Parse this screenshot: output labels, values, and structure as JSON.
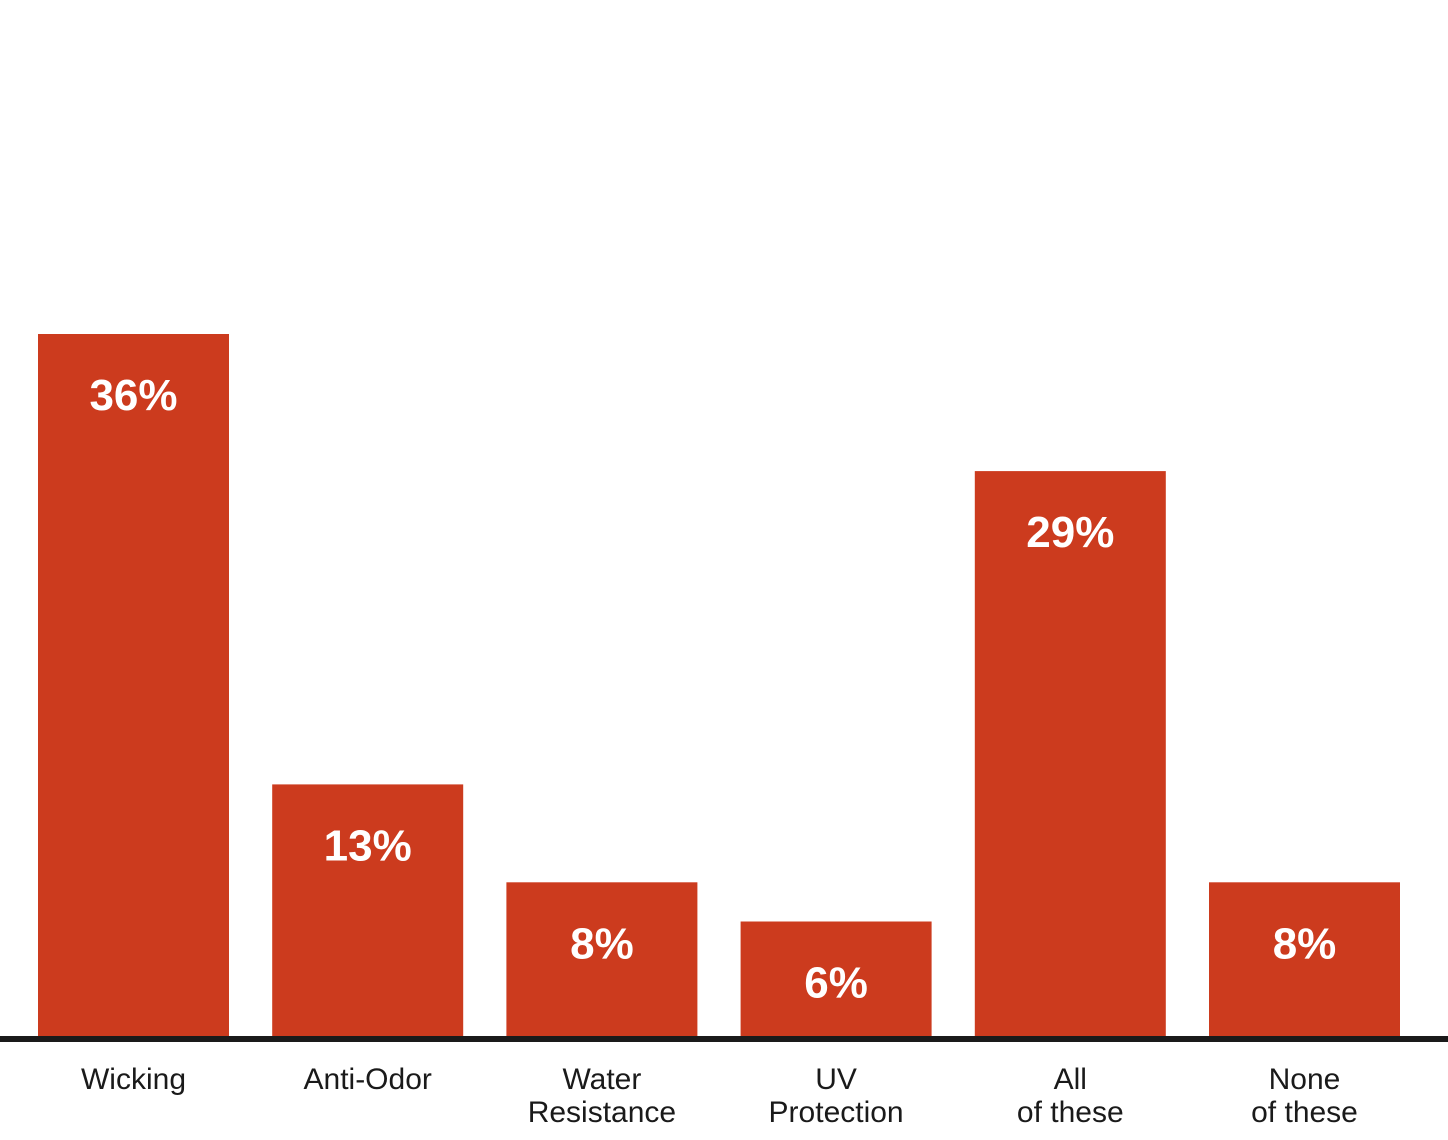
{
  "chart_data": {
    "type": "bar",
    "categories": [
      [
        "Wicking"
      ],
      [
        "Anti-Odor"
      ],
      [
        "Water",
        "Resistance"
      ],
      [
        "UV",
        "Protection"
      ],
      [
        "All",
        "of these"
      ],
      [
        "None",
        "of these"
      ]
    ],
    "values": [
      36,
      13,
      8,
      6,
      29,
      8
    ],
    "value_labels": [
      "36%",
      "13%",
      "8%",
      "6%",
      "29%",
      "8%"
    ],
    "unit": "%",
    "title": "",
    "xlabel": "",
    "ylabel": "",
    "ylim": [
      0,
      50
    ],
    "grid": false,
    "legend": "none",
    "colors": {
      "bar": "#cc3b1e",
      "baseline": "#1a1a1a",
      "value_text": "#ffffff",
      "label_text": "#1a1a1a"
    }
  }
}
